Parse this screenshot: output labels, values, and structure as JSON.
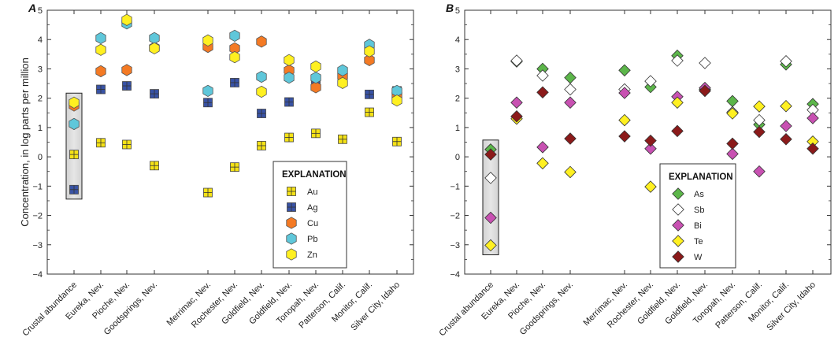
{
  "chart_data": [
    {
      "panel": "A",
      "type": "scatter",
      "ylabel": "Concentration, in log parts per million",
      "ylim": [
        -4,
        5
      ],
      "yticks": [
        "5",
        "4",
        "3",
        "2",
        "1",
        "0",
        "−1",
        "−2",
        "−3",
        "−4"
      ],
      "categories": [
        "Crustal abundance",
        "Eureka, Nev.",
        "Pioche, Nev.",
        "Goodsprings, Nev.",
        "Merrimac, Nev.",
        "Rochester, Nev.",
        "Goldfield, Nev.",
        "Goldfield, Nev.",
        "Tonopah, Nev.",
        "Patterson, Calif.",
        "Monitor, Calif.",
        "Silver City, Idaho"
      ],
      "legend_title": "EXPLANATION",
      "legend_position": "bottom-right",
      "highlight_box_category": "Crustal abundance",
      "series": [
        {
          "name": "Au",
          "marker": "square-cross",
          "color": "#f5e216",
          "values": [
            0.08,
            0.48,
            0.42,
            -0.3,
            -1.22,
            -0.35,
            0.38,
            0.66,
            0.8,
            0.6,
            1.52,
            0.52
          ]
        },
        {
          "name": "Ag",
          "marker": "square-cross",
          "color": "#3852a4",
          "values": [
            -1.12,
            2.3,
            2.42,
            2.15,
            1.85,
            2.53,
            1.48,
            1.87,
            2.65,
            2.72,
            2.13,
            2.25
          ]
        },
        {
          "name": "Cu",
          "marker": "hexagon",
          "color": "#f47a24",
          "values": [
            1.75,
            2.92,
            2.96,
            3.72,
            3.75,
            3.7,
            3.93,
            2.95,
            2.37,
            2.75,
            3.3,
            2.1
          ]
        },
        {
          "name": "Pb",
          "marker": "hexagon",
          "color": "#5fc7da",
          "values": [
            1.12,
            4.05,
            4.55,
            4.05,
            2.25,
            4.13,
            2.73,
            2.7,
            2.7,
            2.95,
            3.82,
            2.25
          ]
        },
        {
          "name": "Zn",
          "marker": "hexagon",
          "color": "#fff021",
          "values": [
            1.85,
            3.65,
            4.67,
            3.7,
            3.97,
            3.4,
            2.22,
            3.3,
            3.08,
            2.52,
            3.6,
            1.92
          ]
        }
      ]
    },
    {
      "panel": "B",
      "type": "scatter",
      "ylim": [
        -4,
        5
      ],
      "yticks": [
        "5",
        "4",
        "3",
        "2",
        "1",
        "0",
        "−1",
        "−2",
        "−3",
        "−4"
      ],
      "categories": [
        "Crustal abundance",
        "Eureka, Nev.",
        "Pioche, Nev.",
        "Goodsprings, Nev.",
        "Merrimac, Nev.",
        "Rochester, Nev.",
        "Goldfield, Nev.",
        "Goldfield, Nev.",
        "Tonopah, Nev.",
        "Patterson, Calif.",
        "Monitor, Calif.",
        "Silver City, Idaho"
      ],
      "legend_title": "EXPLANATION",
      "legend_position": "bottom-right",
      "highlight_box_category": "Crustal abundance",
      "series": [
        {
          "name": "As",
          "marker": "diamond",
          "color": "#5cb64a",
          "values": [
            0.25,
            3.25,
            3.0,
            2.7,
            2.95,
            2.38,
            3.45,
            2.3,
            1.9,
            1.1,
            3.15,
            1.8
          ]
        },
        {
          "name": "Sb",
          "marker": "diamond",
          "color": "#ffffff",
          "values": [
            -0.72,
            3.28,
            2.77,
            2.3,
            2.3,
            2.58,
            3.28,
            3.2,
            1.52,
            1.25,
            3.26,
            1.6
          ]
        },
        {
          "name": "Bi",
          "marker": "diamond",
          "color": "#c851b2",
          "values": [
            -2.08,
            1.85,
            0.33,
            1.85,
            2.18,
            0.28,
            2.05,
            2.35,
            0.1,
            -0.5,
            1.05,
            1.32
          ]
        },
        {
          "name": "Te",
          "marker": "diamond",
          "color": "#fff021",
          "values": [
            -3.02,
            1.3,
            -0.22,
            -0.52,
            1.25,
            -1.02,
            1.85,
            2.25,
            1.48,
            1.72,
            1.73,
            0.52
          ]
        },
        {
          "name": "W",
          "marker": "diamond",
          "color": "#8b1a1a",
          "values": [
            0.08,
            1.38,
            2.2,
            0.62,
            0.7,
            0.55,
            0.88,
            2.25,
            0.45,
            0.85,
            0.6,
            0.28
          ]
        }
      ]
    }
  ]
}
